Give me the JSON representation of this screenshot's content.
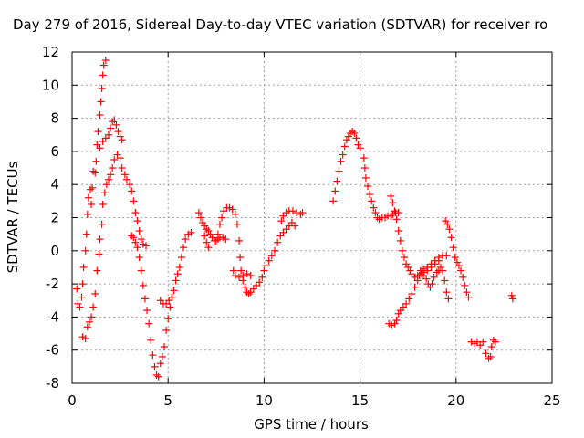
{
  "chart_data": {
    "type": "scatter",
    "title": "Day 279 of 2016, Sidereal Day-to-day VTEC variation (SDTVAR) for receiver ro",
    "xlabel": "GPS time / hours",
    "ylabel": "SDTVAR / TECUs",
    "xlim": [
      0,
      25
    ],
    "ylim": [
      -8,
      12
    ],
    "x_ticks": [
      "0",
      "5",
      "10",
      "15",
      "20",
      "25"
    ],
    "y_ticks": [
      "-8",
      "-6",
      "-4",
      "-2",
      "0",
      "2",
      "4",
      "6",
      "8",
      "10",
      "12"
    ],
    "grid": true,
    "marker": "+",
    "color": "#ff0000",
    "series": [
      {
        "points": [
          [
            0.25,
            -2.3
          ],
          [
            0.3,
            -3.2
          ],
          [
            0.4,
            -3.4
          ],
          [
            0.5,
            -2.8
          ],
          [
            0.55,
            -2.0
          ],
          [
            0.6,
            -1.0
          ],
          [
            0.7,
            0.0
          ],
          [
            0.75,
            1.0
          ],
          [
            0.8,
            2.2
          ],
          [
            0.85,
            3.2
          ],
          [
            0.95,
            3.7
          ],
          [
            1.0,
            2.8
          ],
          [
            1.05,
            3.8
          ],
          [
            1.1,
            4.8
          ],
          [
            1.2,
            4.7
          ],
          [
            1.25,
            5.4
          ],
          [
            1.3,
            6.4
          ],
          [
            1.35,
            7.2
          ],
          [
            1.45,
            8.2
          ],
          [
            1.5,
            9.0
          ],
          [
            1.55,
            9.8
          ],
          [
            1.6,
            10.6
          ],
          [
            1.65,
            11.2
          ],
          [
            1.75,
            11.5
          ],
          [
            0.55,
            -5.2
          ],
          [
            0.7,
            -5.3
          ],
          [
            0.8,
            -4.6
          ],
          [
            0.9,
            -4.3
          ],
          [
            1.0,
            -4.0
          ],
          [
            1.1,
            -3.4
          ],
          [
            1.2,
            -2.6
          ],
          [
            1.3,
            -1.2
          ],
          [
            1.4,
            -0.2
          ],
          [
            1.45,
            0.7
          ],
          [
            1.55,
            1.6
          ],
          [
            1.6,
            2.8
          ],
          [
            1.7,
            3.5
          ],
          [
            1.8,
            4.0
          ],
          [
            1.9,
            4.3
          ],
          [
            2.0,
            4.6
          ],
          [
            2.1,
            5.0
          ],
          [
            2.2,
            5.5
          ],
          [
            2.35,
            5.8
          ],
          [
            2.5,
            5.6
          ],
          [
            2.6,
            5.0
          ],
          [
            2.75,
            4.6
          ],
          [
            2.85,
            4.3
          ],
          [
            3.0,
            4.0
          ],
          [
            3.1,
            3.6
          ],
          [
            3.2,
            3.0
          ],
          [
            3.3,
            2.3
          ],
          [
            3.4,
            1.8
          ],
          [
            3.5,
            1.2
          ],
          [
            3.6,
            0.7
          ],
          [
            3.7,
            0.4
          ],
          [
            3.85,
            0.3
          ],
          [
            1.45,
            6.2
          ],
          [
            1.6,
            6.6
          ],
          [
            1.75,
            6.8
          ],
          [
            1.9,
            7.0
          ],
          [
            2.0,
            7.4
          ],
          [
            2.1,
            7.8
          ],
          [
            2.2,
            7.9
          ],
          [
            2.3,
            7.6
          ],
          [
            2.4,
            7.2
          ],
          [
            2.5,
            6.9
          ],
          [
            2.6,
            6.7
          ],
          [
            3.1,
            0.9
          ],
          [
            3.2,
            0.8
          ],
          [
            3.3,
            0.5
          ],
          [
            3.4,
            0.2
          ],
          [
            3.5,
            -0.4
          ],
          [
            3.6,
            -1.2
          ],
          [
            3.7,
            -2.1
          ],
          [
            3.8,
            -2.9
          ],
          [
            3.9,
            -3.6
          ],
          [
            4.0,
            -4.4
          ],
          [
            4.1,
            -5.4
          ],
          [
            4.2,
            -6.3
          ],
          [
            4.3,
            -7.0
          ],
          [
            4.4,
            -7.5
          ],
          [
            4.5,
            -7.6
          ],
          [
            4.6,
            -6.8
          ],
          [
            4.7,
            -6.4
          ],
          [
            4.8,
            -5.8
          ],
          [
            4.9,
            -4.8
          ],
          [
            5.0,
            -4.1
          ],
          [
            5.1,
            -3.4
          ],
          [
            5.2,
            -2.8
          ],
          [
            5.3,
            -2.4
          ],
          [
            5.4,
            -1.8
          ],
          [
            4.6,
            -3.0
          ],
          [
            4.75,
            -3.2
          ],
          [
            4.9,
            -3.2
          ],
          [
            5.05,
            -3.0
          ],
          [
            5.2,
            -2.8
          ],
          [
            5.5,
            -1.4
          ],
          [
            5.6,
            -1.0
          ],
          [
            5.7,
            -0.4
          ],
          [
            5.8,
            0.2
          ],
          [
            5.9,
            0.7
          ],
          [
            6.05,
            1.0
          ],
          [
            6.2,
            1.1
          ],
          [
            6.6,
            2.3
          ],
          [
            6.7,
            2.0
          ],
          [
            6.8,
            1.7
          ],
          [
            6.9,
            1.5
          ],
          [
            7.0,
            1.3
          ],
          [
            7.1,
            1.2
          ],
          [
            7.2,
            1.0
          ],
          [
            7.3,
            0.8
          ],
          [
            7.4,
            0.6
          ],
          [
            7.5,
            0.6
          ],
          [
            7.6,
            0.7
          ],
          [
            7.7,
            0.8
          ],
          [
            7.85,
            0.8
          ],
          [
            8.0,
            0.7
          ],
          [
            6.9,
            0.9
          ],
          [
            7.0,
            0.5
          ],
          [
            7.1,
            0.2
          ],
          [
            7.6,
            1.0
          ],
          [
            7.7,
            1.6
          ],
          [
            7.8,
            2.0
          ],
          [
            7.9,
            2.4
          ],
          [
            8.05,
            2.6
          ],
          [
            8.2,
            2.6
          ],
          [
            8.35,
            2.5
          ],
          [
            8.5,
            2.2
          ],
          [
            8.6,
            1.6
          ],
          [
            8.7,
            0.6
          ],
          [
            8.75,
            -0.4
          ],
          [
            8.8,
            -1.2
          ],
          [
            8.9,
            -1.8
          ],
          [
            9.0,
            -2.2
          ],
          [
            9.1,
            -2.5
          ],
          [
            9.2,
            -2.6
          ],
          [
            9.3,
            -2.5
          ],
          [
            9.45,
            -2.3
          ],
          [
            9.6,
            -2.1
          ],
          [
            9.75,
            -1.9
          ],
          [
            9.9,
            -1.6
          ],
          [
            10.0,
            -1.2
          ],
          [
            10.1,
            -0.9
          ],
          [
            10.25,
            -0.6
          ],
          [
            10.4,
            -0.3
          ],
          [
            10.55,
            0.0
          ],
          [
            10.7,
            0.5
          ],
          [
            10.85,
            0.9
          ],
          [
            11.0,
            1.1
          ],
          [
            11.15,
            1.3
          ],
          [
            11.3,
            1.5
          ],
          [
            11.45,
            1.7
          ],
          [
            11.6,
            1.5
          ],
          [
            8.4,
            -1.2
          ],
          [
            8.5,
            -1.5
          ],
          [
            8.7,
            -1.6
          ],
          [
            8.9,
            -1.5
          ],
          [
            9.1,
            -1.4
          ],
          [
            9.3,
            -1.5
          ],
          [
            10.9,
            1.8
          ],
          [
            11.0,
            2.1
          ],
          [
            11.15,
            2.3
          ],
          [
            11.3,
            2.4
          ],
          [
            11.5,
            2.4
          ],
          [
            11.7,
            2.3
          ],
          [
            11.9,
            2.2
          ],
          [
            12.0,
            2.3
          ],
          [
            13.6,
            3.0
          ],
          [
            13.7,
            3.6
          ],
          [
            13.8,
            4.2
          ],
          [
            13.9,
            4.8
          ],
          [
            14.0,
            5.4
          ],
          [
            14.1,
            5.8
          ],
          [
            14.2,
            6.3
          ],
          [
            14.3,
            6.7
          ],
          [
            14.4,
            6.9
          ],
          [
            14.5,
            7.1
          ],
          [
            14.6,
            7.2
          ],
          [
            14.7,
            7.1
          ],
          [
            14.8,
            6.8
          ],
          [
            14.9,
            6.4
          ],
          [
            15.0,
            6.2
          ],
          [
            15.2,
            5.6
          ],
          [
            15.25,
            5.0
          ],
          [
            15.3,
            4.4
          ],
          [
            15.4,
            3.9
          ],
          [
            15.5,
            3.4
          ],
          [
            15.6,
            3.0
          ],
          [
            15.7,
            2.6
          ],
          [
            15.8,
            2.3
          ],
          [
            15.9,
            2.0
          ],
          [
            16.0,
            1.9
          ],
          [
            16.15,
            2.0
          ],
          [
            16.3,
            2.0
          ],
          [
            16.45,
            2.1
          ],
          [
            16.6,
            2.1
          ],
          [
            16.7,
            2.2
          ],
          [
            16.85,
            2.3
          ],
          [
            17.0,
            2.3
          ],
          [
            16.6,
            3.3
          ],
          [
            16.7,
            2.9
          ],
          [
            16.8,
            2.4
          ],
          [
            16.9,
            1.9
          ],
          [
            17.0,
            1.2
          ],
          [
            17.1,
            0.6
          ],
          [
            17.2,
            0.0
          ],
          [
            17.3,
            -0.4
          ],
          [
            17.4,
            -0.8
          ],
          [
            17.5,
            -1.0
          ],
          [
            17.6,
            -1.2
          ],
          [
            17.7,
            -1.4
          ],
          [
            17.85,
            -1.6
          ],
          [
            18.0,
            -1.5
          ],
          [
            18.15,
            -1.2
          ],
          [
            18.3,
            -1.1
          ],
          [
            18.5,
            -1.0
          ],
          [
            18.7,
            -0.8
          ],
          [
            18.9,
            -0.6
          ],
          [
            19.1,
            -0.4
          ],
          [
            19.3,
            -0.3
          ],
          [
            19.5,
            -0.3
          ],
          [
            16.5,
            -4.4
          ],
          [
            16.65,
            -4.5
          ],
          [
            16.8,
            -4.4
          ],
          [
            16.9,
            -4.2
          ],
          [
            17.0,
            -3.8
          ],
          [
            17.1,
            -3.6
          ],
          [
            17.25,
            -3.4
          ],
          [
            17.4,
            -3.2
          ],
          [
            17.55,
            -2.9
          ],
          [
            17.7,
            -2.6
          ],
          [
            17.85,
            -2.2
          ],
          [
            18.0,
            -1.8
          ],
          [
            18.1,
            -1.5
          ],
          [
            18.2,
            -1.4
          ],
          [
            18.3,
            -1.5
          ],
          [
            18.45,
            -1.7
          ],
          [
            18.55,
            -2.0
          ],
          [
            18.65,
            -2.2
          ],
          [
            18.75,
            -2.0
          ],
          [
            18.85,
            -1.6
          ],
          [
            19.0,
            -1.3
          ],
          [
            19.1,
            -1.2
          ],
          [
            19.2,
            -1.0
          ],
          [
            19.3,
            -1.2
          ],
          [
            19.4,
            -1.8
          ],
          [
            19.5,
            -2.5
          ],
          [
            19.6,
            -2.9
          ],
          [
            18.1,
            -1.5
          ],
          [
            18.3,
            -1.3
          ],
          [
            18.5,
            -1.2
          ],
          [
            18.7,
            -1.0
          ],
          [
            18.9,
            -0.8
          ],
          [
            19.1,
            -0.6
          ],
          [
            19.45,
            1.8
          ],
          [
            19.55,
            1.6
          ],
          [
            19.65,
            1.3
          ],
          [
            19.75,
            0.8
          ],
          [
            19.85,
            0.2
          ],
          [
            19.95,
            -0.4
          ],
          [
            20.05,
            -0.7
          ],
          [
            20.15,
            -0.9
          ],
          [
            20.25,
            -1.2
          ],
          [
            20.35,
            -1.6
          ],
          [
            20.45,
            -2.1
          ],
          [
            20.55,
            -2.5
          ],
          [
            20.65,
            -2.8
          ],
          [
            20.8,
            -5.5
          ],
          [
            20.95,
            -5.6
          ],
          [
            21.1,
            -5.5
          ],
          [
            21.25,
            -5.7
          ],
          [
            21.4,
            -5.5
          ],
          [
            21.55,
            -6.2
          ],
          [
            21.7,
            -6.5
          ],
          [
            21.8,
            -6.4
          ],
          [
            21.85,
            -5.8
          ],
          [
            21.95,
            -5.4
          ],
          [
            22.05,
            -5.5
          ],
          [
            22.9,
            -2.7
          ],
          [
            22.95,
            -2.9
          ]
        ]
      }
    ]
  }
}
